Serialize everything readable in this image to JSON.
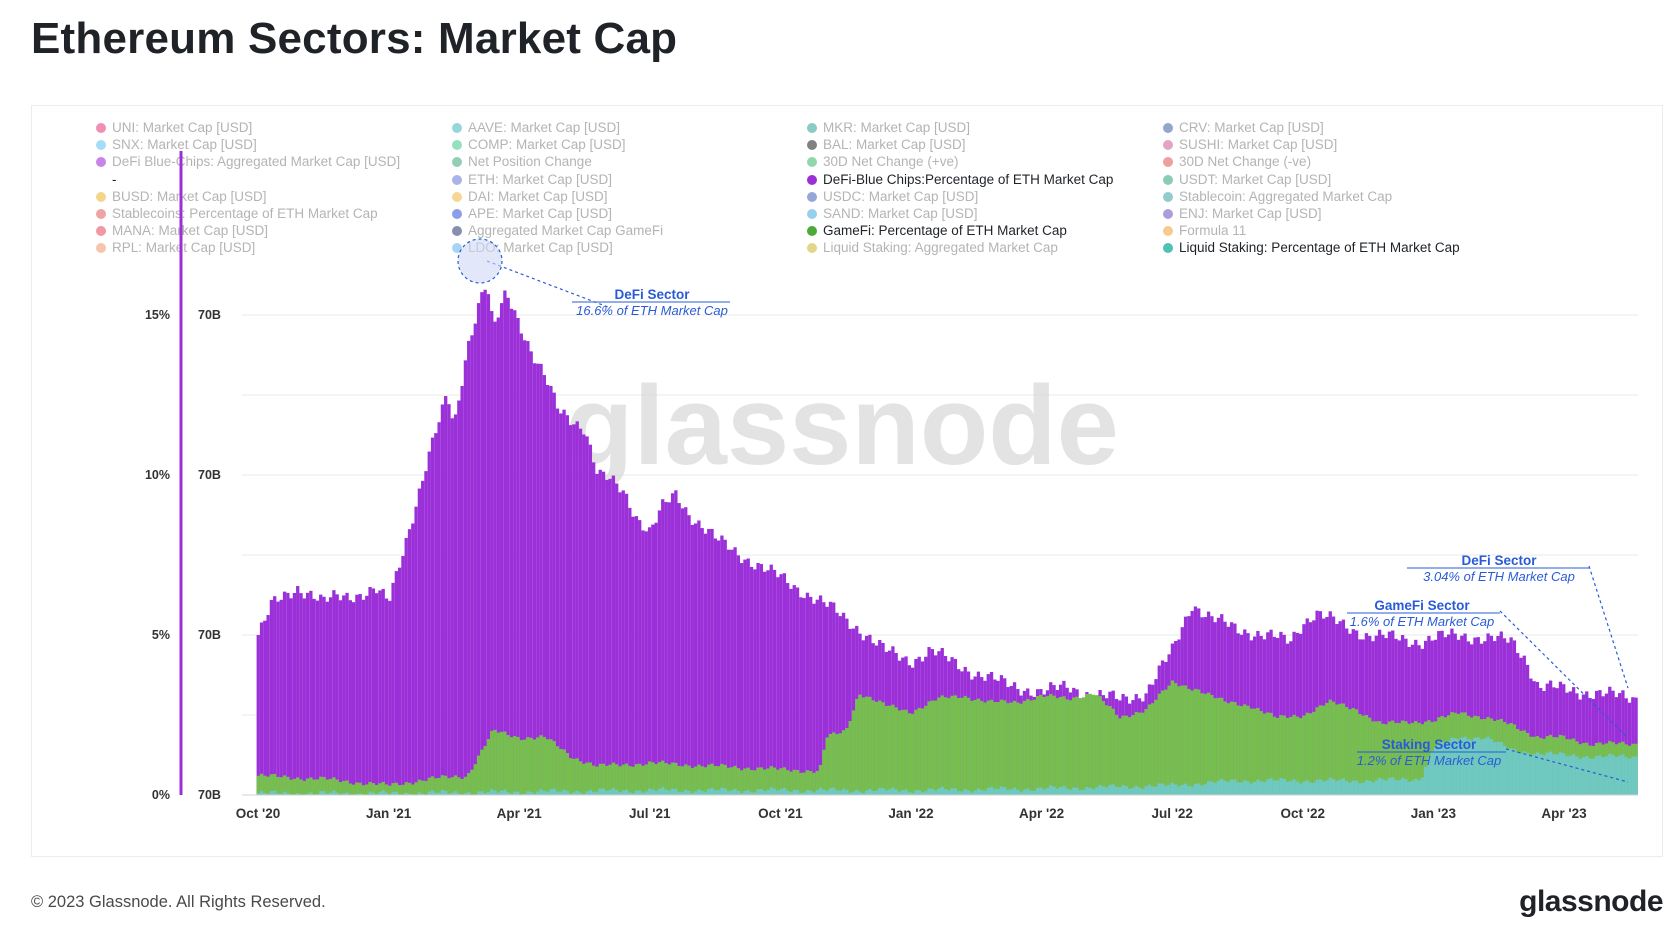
{
  "title": "Ethereum Sectors: Market Cap",
  "footer": "© 2023 Glassnode. All Rights Reserved.",
  "brand": "glassnode",
  "watermark": "glassnode",
  "legend": [
    {
      "label": "UNI: Market Cap [USD]",
      "color": "#e0357a",
      "active": false
    },
    {
      "label": "SNX: Market Cap [USD]",
      "color": "#5bc0f0",
      "active": false
    },
    {
      "label": "DeFi Blue-Chips: Aggregated Market Cap [USD]",
      "color": "#9a1fd1",
      "active": false
    },
    {
      "label": "-",
      "color": "",
      "active": true
    },
    {
      "label": "BUSD: Market Cap [USD]",
      "color": "#e7b52b",
      "active": false
    },
    {
      "label": "Stablecoins: Percentage of ETH Market Cap",
      "color": "#e05a5a",
      "active": false
    },
    {
      "label": "MANA: Market Cap [USD]",
      "color": "#e8425a",
      "active": false
    },
    {
      "label": "RPL: Market Cap [USD]",
      "color": "#f0936a",
      "active": false
    },
    {
      "label": "AAVE: Market Cap [USD]",
      "color": "#3bb7c0",
      "active": false
    },
    {
      "label": "COMP: Market Cap [USD]",
      "color": "#3cc98b",
      "active": false
    },
    {
      "label": "Net Position Change",
      "color": "#3aa877",
      "active": false
    },
    {
      "label": "ETH: Market Cap [USD]",
      "color": "#6274d6",
      "active": false
    },
    {
      "label": "DAI: Market Cap [USD]",
      "color": "#f0b340",
      "active": false
    },
    {
      "label": "APE: Market Cap [USD]",
      "color": "#2d4fd6",
      "active": false
    },
    {
      "label": "Aggregated Market Cap GameFi",
      "color": "#23336e",
      "active": false
    },
    {
      "label": "LDO: Market Cap [USD]",
      "color": "#5fb0ea",
      "active": false
    },
    {
      "label": "MKR: Market Cap [USD]",
      "color": "#2aa198",
      "active": false
    },
    {
      "label": "BAL: Market Cap [USD]",
      "color": "#1a1a1a",
      "active": false
    },
    {
      "label": "30D Net Change (+ve)",
      "color": "#3ab36a",
      "active": false
    },
    {
      "label": "DeFi-Blue Chips:Percentage of ETH Market Cap",
      "color": "#9b30d9",
      "active": true
    },
    {
      "label": "USDC: Market Cap [USD]",
      "color": "#3d5fb8",
      "active": false
    },
    {
      "label": "SAND: Market Cap [USD]",
      "color": "#3fa9e0",
      "active": false
    },
    {
      "label": "GameFi: Percentage of ETH Market Cap",
      "color": "#4fa83a",
      "active": true
    },
    {
      "label": "Liquid Staking: Aggregated Market Cap",
      "color": "#c8b52a",
      "active": false
    },
    {
      "label": "CRV: Market Cap [USD]",
      "color": "#3b5ca8",
      "active": false
    },
    {
      "label": "SUSHI: Market Cap [USD]",
      "color": "#d05a95",
      "active": false
    },
    {
      "label": "30D Net Change (-ve)",
      "color": "#e05050",
      "active": false
    },
    {
      "label": "USDT: Market Cap [USD]",
      "color": "#2f9e75",
      "active": false
    },
    {
      "label": "Stablecoin: Aggregated Market Cap",
      "color": "#3a9ea5",
      "active": false
    },
    {
      "label": "ENJ: Market Cap [USD]",
      "color": "#6a4cc0",
      "active": false
    },
    {
      "label": "Formula 11",
      "color": "#f0a030",
      "active": false
    },
    {
      "label": "Liquid Staking: Percentage of ETH Market Cap",
      "color": "#4ec0b5",
      "active": true
    }
  ],
  "chart_data": {
    "type": "area",
    "x_ticks": [
      "Oct '20",
      "Jan '21",
      "Apr '21",
      "Jul '21",
      "Oct '21",
      "Jan '22",
      "Apr '22",
      "Jul '22",
      "Oct '22",
      "Jan '23",
      "Apr '23"
    ],
    "y_ticks_left": [
      "0%",
      "5%",
      "10%",
      "15%"
    ],
    "y_ticks_right": [
      "70B",
      "70B",
      "70B",
      "70B"
    ],
    "ylim": [
      0,
      15.5
    ],
    "grid": true,
    "legend_position": "top",
    "series": [
      {
        "name": "DeFi-Blue Chips:Percentage of ETH Market Cap",
        "color": "#9b30d9",
        "points": [
          [
            0,
            5.0
          ],
          [
            0.05,
            5.4
          ],
          [
            0.1,
            5.9
          ],
          [
            0.2,
            6.2
          ],
          [
            0.3,
            6.5
          ],
          [
            0.4,
            6.3
          ],
          [
            0.5,
            6.0
          ],
          [
            0.6,
            6.2
          ],
          [
            0.8,
            6.3
          ],
          [
            0.9,
            6.4
          ],
          [
            1.0,
            6.0
          ],
          [
            1.1,
            7.5
          ],
          [
            1.2,
            9.0
          ],
          [
            1.3,
            10.5
          ],
          [
            1.45,
            12.5
          ],
          [
            1.5,
            11.5
          ],
          [
            1.6,
            14.0
          ],
          [
            1.7,
            15.5
          ],
          [
            1.75,
            16.0
          ],
          [
            1.8,
            14.5
          ],
          [
            1.9,
            15.7
          ],
          [
            2.0,
            14.8
          ],
          [
            2.1,
            13.8
          ],
          [
            2.2,
            13.0
          ],
          [
            2.3,
            12.0
          ],
          [
            2.5,
            11.5
          ],
          [
            2.6,
            10.0
          ],
          [
            2.7,
            9.8
          ],
          [
            2.8,
            9.5
          ],
          [
            2.9,
            8.7
          ],
          [
            3.0,
            8.2
          ],
          [
            3.1,
            9.0
          ],
          [
            3.2,
            9.4
          ],
          [
            3.3,
            8.8
          ],
          [
            3.5,
            8.0
          ],
          [
            3.7,
            7.5
          ],
          [
            3.9,
            7.0
          ],
          [
            4.0,
            6.8
          ],
          [
            4.2,
            6.3
          ],
          [
            4.4,
            5.8
          ],
          [
            4.6,
            5.2
          ],
          [
            4.8,
            4.5
          ],
          [
            5.0,
            4.2
          ],
          [
            5.15,
            4.5
          ],
          [
            5.3,
            4.2
          ],
          [
            5.5,
            3.8
          ],
          [
            5.7,
            3.5
          ],
          [
            5.9,
            3.3
          ],
          [
            6.0,
            3.2
          ],
          [
            6.2,
            3.4
          ],
          [
            6.4,
            3.1
          ],
          [
            6.6,
            3.0
          ],
          [
            6.8,
            3.2
          ],
          [
            7.0,
            4.5
          ],
          [
            7.15,
            6.0
          ],
          [
            7.3,
            5.5
          ],
          [
            7.5,
            5.2
          ],
          [
            7.7,
            5.0
          ],
          [
            7.9,
            4.8
          ],
          [
            8.0,
            5.4
          ],
          [
            8.1,
            5.7
          ],
          [
            8.3,
            5.3
          ],
          [
            8.5,
            5.0
          ],
          [
            8.7,
            4.9
          ],
          [
            8.9,
            4.8
          ],
          [
            9.0,
            4.9
          ],
          [
            9.2,
            5.0
          ],
          [
            9.4,
            4.9
          ],
          [
            9.6,
            4.8
          ],
          [
            9.7,
            4.3
          ],
          [
            9.8,
            3.4
          ],
          [
            10.0,
            3.3
          ],
          [
            10.2,
            3.2
          ],
          [
            10.4,
            3.1
          ],
          [
            10.55,
            3.04
          ]
        ]
      },
      {
        "name": "GameFi: Percentage of ETH Market Cap",
        "color": "#76bf4f",
        "points": [
          [
            0,
            0.6
          ],
          [
            0.5,
            0.5
          ],
          [
            1.0,
            0.3
          ],
          [
            1.3,
            0.5
          ],
          [
            1.6,
            0.6
          ],
          [
            1.8,
            2.0
          ],
          [
            2.0,
            1.8
          ],
          [
            2.2,
            1.8
          ],
          [
            2.4,
            1.2
          ],
          [
            2.6,
            0.9
          ],
          [
            3.0,
            1.0
          ],
          [
            3.5,
            0.9
          ],
          [
            4.0,
            0.8
          ],
          [
            4.3,
            0.75
          ],
          [
            4.35,
            1.8
          ],
          [
            4.5,
            2.0
          ],
          [
            4.6,
            3.2
          ],
          [
            4.8,
            2.8
          ],
          [
            5.0,
            2.6
          ],
          [
            5.2,
            3.0
          ],
          [
            5.4,
            3.1
          ],
          [
            5.6,
            2.9
          ],
          [
            5.8,
            2.9
          ],
          [
            6.0,
            3.1
          ],
          [
            6.2,
            3.0
          ],
          [
            6.4,
            3.2
          ],
          [
            6.6,
            2.4
          ],
          [
            6.8,
            2.7
          ],
          [
            7.0,
            3.5
          ],
          [
            7.2,
            3.3
          ],
          [
            7.4,
            2.9
          ],
          [
            7.6,
            2.8
          ],
          [
            7.8,
            2.4
          ],
          [
            8.0,
            2.5
          ],
          [
            8.2,
            2.9
          ],
          [
            8.4,
            2.7
          ],
          [
            8.6,
            2.2
          ],
          [
            8.8,
            2.3
          ],
          [
            9.0,
            2.3
          ],
          [
            9.2,
            2.6
          ],
          [
            9.4,
            2.4
          ],
          [
            9.6,
            2.2
          ],
          [
            9.8,
            1.8
          ],
          [
            10.0,
            1.8
          ],
          [
            10.2,
            1.6
          ],
          [
            10.55,
            1.6
          ]
        ]
      },
      {
        "name": "Liquid Staking: Percentage of ETH Market Cap",
        "color": "#6fc9c1",
        "points": [
          [
            0,
            0.05
          ],
          [
            1.0,
            0.05
          ],
          [
            2.0,
            0.1
          ],
          [
            3.0,
            0.15
          ],
          [
            4.0,
            0.15
          ],
          [
            5.0,
            0.15
          ],
          [
            6.0,
            0.2
          ],
          [
            7.0,
            0.3
          ],
          [
            7.5,
            0.45
          ],
          [
            8.0,
            0.45
          ],
          [
            8.5,
            0.45
          ],
          [
            8.9,
            0.5
          ],
          [
            9.0,
            1.5
          ],
          [
            9.2,
            1.8
          ],
          [
            9.4,
            1.8
          ],
          [
            9.6,
            1.4
          ],
          [
            9.8,
            1.3
          ],
          [
            10.2,
            1.2
          ],
          [
            10.55,
            1.2
          ]
        ]
      }
    ],
    "annotations": [
      {
        "title": "DeFi Sector",
        "text": "16.6% of ETH Market Cap"
      },
      {
        "title": "DeFi Sector",
        "text": "3.04% of ETH Market Cap"
      },
      {
        "title": "GameFi Sector",
        "text": "1.6% of ETH Market Cap"
      },
      {
        "title": "Staking Sector",
        "text": "1.2% of ETH Market Cap"
      }
    ]
  }
}
